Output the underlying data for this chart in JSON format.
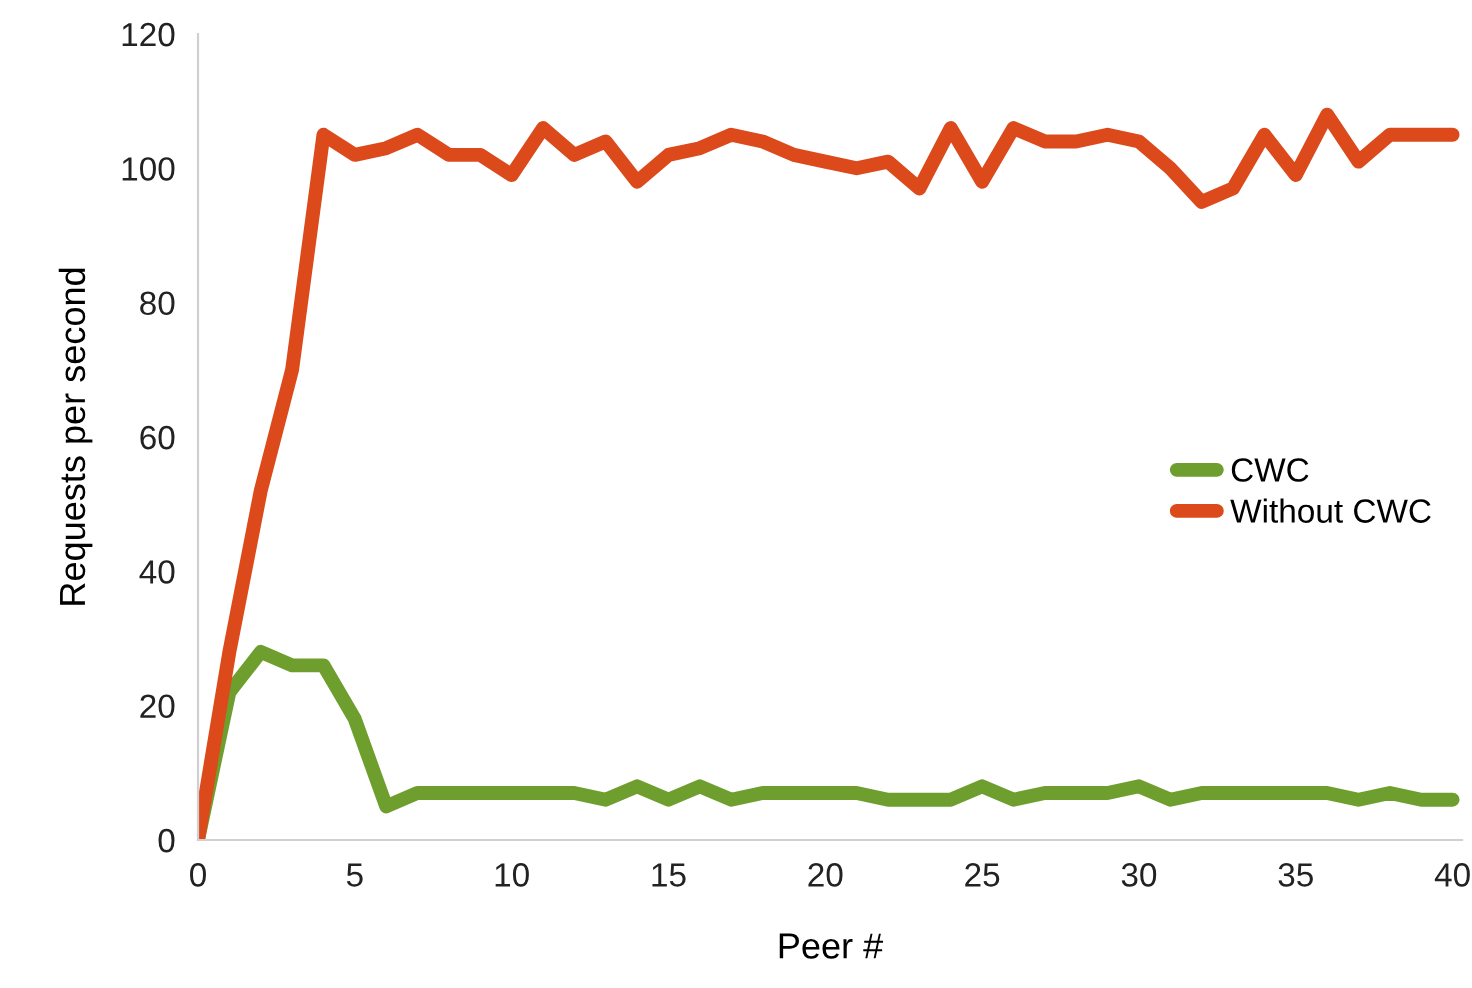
{
  "chart_data": {
    "type": "line",
    "xlabel": "Peer #",
    "ylabel": "Requests per second",
    "x": [
      0,
      1,
      2,
      3,
      4,
      5,
      6,
      7,
      8,
      9,
      10,
      11,
      12,
      13,
      14,
      15,
      16,
      17,
      18,
      19,
      20,
      21,
      22,
      23,
      24,
      25,
      26,
      27,
      28,
      29,
      30,
      31,
      32,
      33,
      34,
      35,
      36,
      37,
      38,
      39,
      40
    ],
    "series": [
      {
        "name": "CWC",
        "color": "#6e9e2e",
        "values": [
          0,
          22,
          28,
          26,
          26,
          18,
          5,
          7,
          7,
          7,
          7,
          7,
          7,
          6,
          8,
          6,
          8,
          6,
          7,
          7,
          7,
          7,
          6,
          6,
          6,
          8,
          6,
          7,
          7,
          7,
          8,
          6,
          7,
          7,
          7,
          7,
          7,
          6,
          7,
          6,
          6
        ]
      },
      {
        "name": "Without CWC",
        "color": "#dc4a1c",
        "values": [
          0,
          28,
          52,
          70,
          105,
          102,
          103,
          105,
          102,
          102,
          99,
          106,
          102,
          104,
          98,
          102,
          103,
          105,
          104,
          102,
          101,
          100,
          101,
          97,
          106,
          98,
          106,
          104,
          104,
          105,
          104,
          100,
          95,
          97,
          105,
          99,
          108,
          101,
          105,
          105,
          105
        ]
      }
    ],
    "xlim": [
      0,
      40.3
    ],
    "xticks": [
      0,
      5,
      10,
      15,
      20,
      25,
      30,
      35,
      40
    ],
    "ylim": [
      0,
      120
    ],
    "yticks": [
      0,
      20,
      40,
      60,
      80,
      100,
      120
    ],
    "grid": false,
    "legend": "right",
    "marker": "none",
    "line_style": "solid"
  }
}
